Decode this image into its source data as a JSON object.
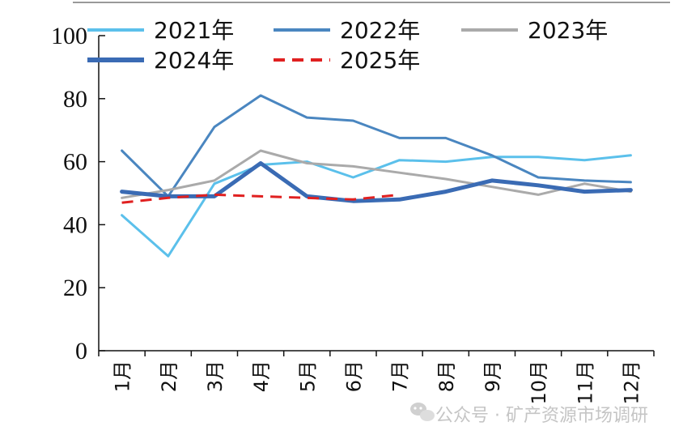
{
  "chart_data": {
    "type": "line",
    "categories": [
      "1月",
      "2月",
      "3月",
      "4月",
      "5月",
      "6月",
      "7月",
      "8月",
      "9月",
      "10月",
      "11月",
      "12月"
    ],
    "ylim": [
      0,
      100
    ],
    "yticks": [
      0,
      20,
      40,
      60,
      80,
      100
    ],
    "legend_position": "top",
    "grid": false,
    "series": [
      {
        "name": "2021年",
        "color": "#5bc0eb",
        "dashed": false,
        "width": 3,
        "values": [
          43,
          30,
          53,
          59,
          60,
          55,
          60.5,
          60,
          61.5,
          61.5,
          60.5,
          62
        ]
      },
      {
        "name": "2022年",
        "color": "#4a86c0",
        "dashed": false,
        "width": 3,
        "values": [
          63.5,
          49,
          71,
          81,
          74,
          73,
          67.5,
          67.5,
          62,
          55,
          54,
          53.5
        ]
      },
      {
        "name": "2023年",
        "color": "#aaaaaa",
        "dashed": false,
        "width": 3,
        "values": [
          48.5,
          51,
          54,
          63.5,
          59.5,
          58.5,
          56.5,
          54.5,
          52,
          49.5,
          53,
          50.5
        ]
      },
      {
        "name": "2024年",
        "color": "#3a6bb4",
        "dashed": false,
        "width": 5,
        "values": [
          50.5,
          49,
          49,
          59.5,
          49,
          47.5,
          48,
          50.5,
          54,
          52.5,
          50.5,
          51
        ]
      },
      {
        "name": "2025年",
        "color": "#e02020",
        "dashed": true,
        "width": 3,
        "values": [
          47,
          48.5,
          49.5,
          49,
          48.5,
          48,
          49.5,
          null,
          null,
          null,
          null,
          null
        ]
      }
    ]
  },
  "watermark": {
    "text": "公众号 · 矿产资源市场调研",
    "icon": "wechat-icon"
  }
}
